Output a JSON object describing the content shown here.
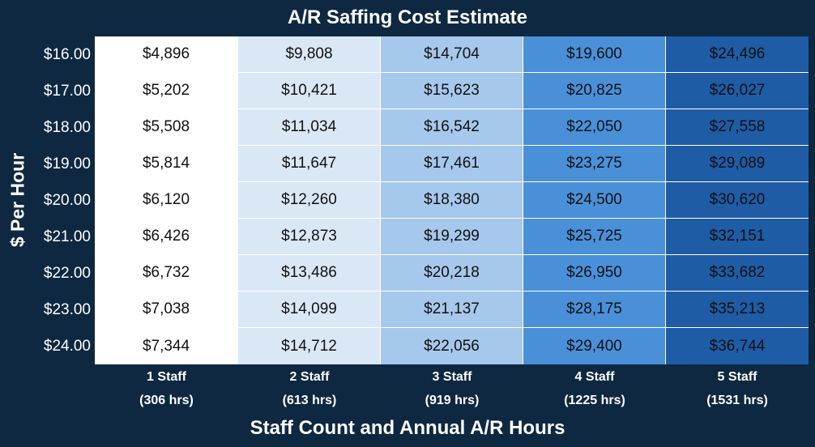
{
  "chart_data": {
    "type": "table",
    "title": "A/R Saffing Cost Estimate",
    "xlabel": "Staff Count and Annual A/R Hours",
    "ylabel": "$ Per Hour",
    "row_labels": [
      "$16.00",
      "$17.00",
      "$18.00",
      "$19.00",
      "$20.00",
      "$21.00",
      "$22.00",
      "$23.00",
      "$24.00"
    ],
    "columns": [
      {
        "label": "1 Staff",
        "sublabel": "(306 hrs)"
      },
      {
        "label": "2 Staff",
        "sublabel": "(613 hrs)"
      },
      {
        "label": "3 Staff",
        "sublabel": "(919 hrs)"
      },
      {
        "label": "4 Staff",
        "sublabel": "(1225 hrs)"
      },
      {
        "label": "5 Staff",
        "sublabel": "(1531 hrs)"
      }
    ],
    "rows": [
      [
        "$4,896",
        "$9,808",
        "$14,704",
        "$19,600",
        "$24,496"
      ],
      [
        "$5,202",
        "$10,421",
        "$15,623",
        "$20,825",
        "$26,027"
      ],
      [
        "$5,508",
        "$11,034",
        "$16,542",
        "$22,050",
        "$27,558"
      ],
      [
        "$5,814",
        "$11,647",
        "$17,461",
        "$23,275",
        "$29,089"
      ],
      [
        "$6,120",
        "$12,260",
        "$18,380",
        "$24,500",
        "$30,620"
      ],
      [
        "$6,426",
        "$12,873",
        "$19,299",
        "$25,725",
        "$32,151"
      ],
      [
        "$6,732",
        "$13,486",
        "$20,218",
        "$26,950",
        "$33,682"
      ],
      [
        "$7,038",
        "$14,099",
        "$21,137",
        "$28,175",
        "$35,213"
      ],
      [
        "$7,344",
        "$14,712",
        "$22,056",
        "$29,400",
        "$36,744"
      ]
    ],
    "column_colors": [
      "#ffffff",
      "#dae8f6",
      "#a6c8ec",
      "#4a90d9",
      "#1e5ca6"
    ],
    "background_color": "#0e2841"
  }
}
